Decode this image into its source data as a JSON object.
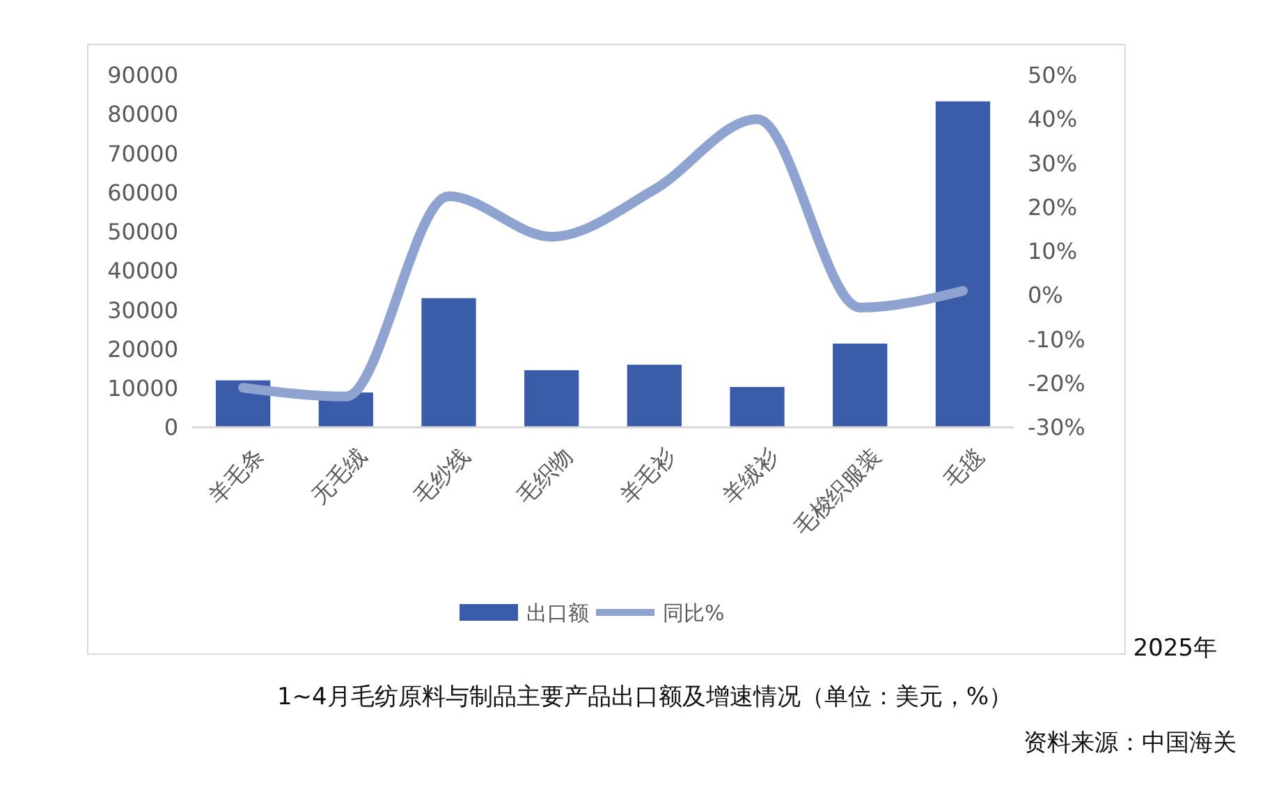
{
  "chart_data": {
    "type": "bar",
    "title": "1~4月毛纺原料与制品主要产品出口额及增速情况（单位：美元，%）",
    "annotations": [
      "2025年",
      "资料来源：中国海关"
    ],
    "categories": [
      "羊毛条",
      "无毛绒",
      "毛纱线",
      "毛织物",
      "羊毛衫",
      "羊绒衫",
      "毛梭织服装",
      "毛毯"
    ],
    "series": [
      {
        "name": "出口额",
        "color": "#3b5ca9",
        "values": [
          12000,
          8900,
          33000,
          14600,
          16000,
          10300,
          21400,
          83300
        ]
      },
      {
        "name": "同比%",
        "type": "line",
        "axis": "y2",
        "color": "#8fa3d0",
        "values": [
          -21,
          -23,
          22.5,
          13.3,
          24,
          40,
          -2.8,
          1
        ]
      }
    ],
    "ylim": [
      0,
      90000
    ],
    "yticks": [
      0,
      10000,
      20000,
      30000,
      40000,
      50000,
      60000,
      70000,
      80000,
      90000
    ],
    "y2lim": [
      -30,
      50
    ],
    "y2ticks": [
      {
        "value": -30,
        "label": "-30%"
      },
      {
        "value": -20,
        "label": "-20%"
      },
      {
        "value": -10,
        "label": "-10%"
      },
      {
        "value": 0,
        "label": "0%"
      },
      {
        "value": 10,
        "label": "10%"
      },
      {
        "value": 20,
        "label": "20%"
      },
      {
        "value": 30,
        "label": "30%"
      },
      {
        "value": 40,
        "label": "40%"
      },
      {
        "value": 50,
        "label": "50%"
      }
    ],
    "grid": false,
    "legend": "bottom",
    "marker": "none",
    "line_style": "solid"
  }
}
